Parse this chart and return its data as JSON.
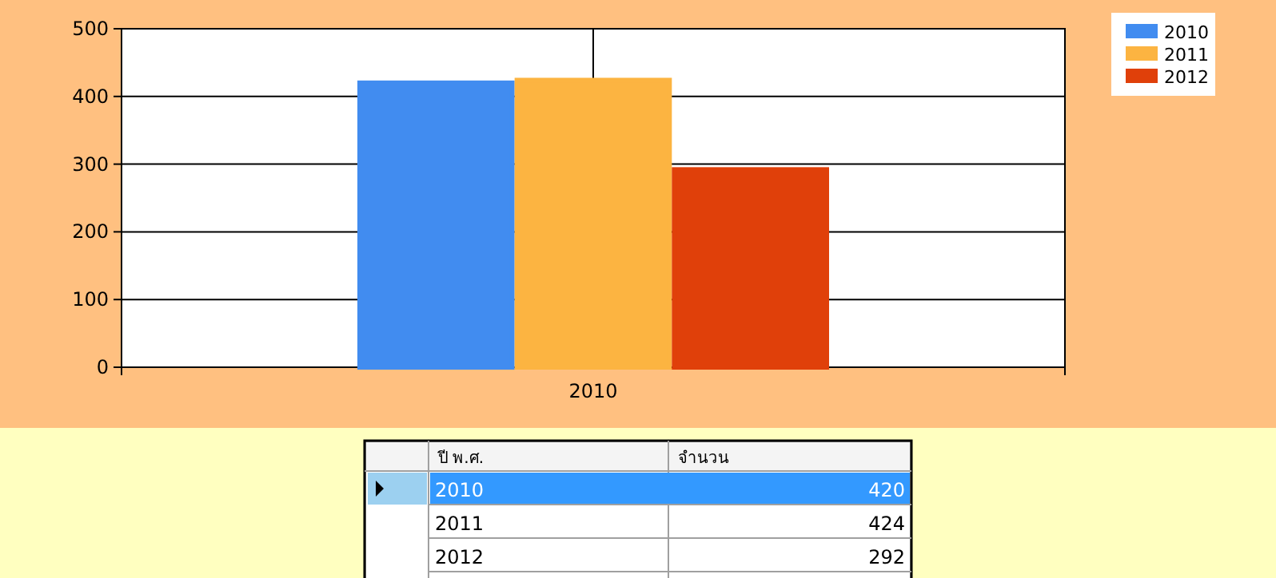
{
  "chart_data": {
    "type": "bar",
    "categories": [
      "2010"
    ],
    "series": [
      {
        "name": "2010",
        "color": "#418cf0",
        "values": [
          420
        ]
      },
      {
        "name": "2011",
        "color": "#fcb441",
        "values": [
          424
        ]
      },
      {
        "name": "2012",
        "color": "#e0400a",
        "values": [
          292
        ]
      }
    ],
    "ylim": [
      0,
      500
    ],
    "yticks": [
      0,
      100,
      200,
      300,
      400,
      500
    ],
    "grid": true,
    "legend": "top right",
    "annotations": [
      "ปี พ.ศ.",
      "จำนวน",
      "420",
      "424",
      "292"
    ]
  }
}
